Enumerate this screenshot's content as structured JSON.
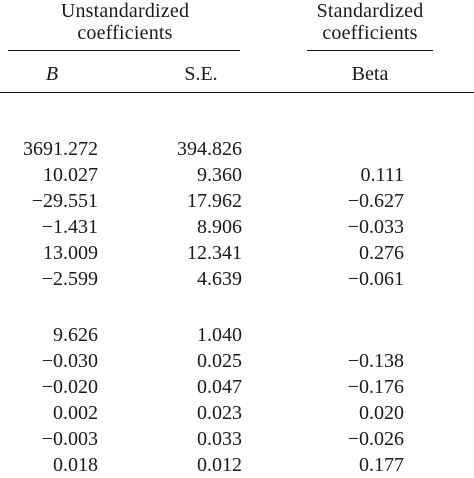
{
  "header": {
    "unstandardized_line1": "Unstandardized",
    "unstandardized_line2": "coefficients",
    "standardized_line1": "Standardized",
    "standardized_line2": "coefficients"
  },
  "columns": {
    "b": "B",
    "se": "S.E.",
    "beta": "Beta"
  },
  "group1": [
    {
      "b": "3691.272",
      "se": "394.826",
      "beta": ""
    },
    {
      "b": "10.027",
      "se": "9.360",
      "beta": "0.111"
    },
    {
      "b": "−29.551",
      "se": "17.962",
      "beta": "−0.627"
    },
    {
      "b": "−1.431",
      "se": "8.906",
      "beta": "−0.033"
    },
    {
      "b": "13.009",
      "se": "12.341",
      "beta": "0.276"
    },
    {
      "b": "−2.599",
      "se": "4.639",
      "beta": "−0.061"
    }
  ],
  "group2": [
    {
      "b": "9.626",
      "se": "1.040",
      "beta": ""
    },
    {
      "b": "−0.030",
      "se": "0.025",
      "beta": "−0.138"
    },
    {
      "b": "−0.020",
      "se": "0.047",
      "beta": "−0.176"
    },
    {
      "b": "0.002",
      "se": "0.023",
      "beta": "0.020"
    },
    {
      "b": "−0.003",
      "se": "0.033",
      "beta": "−0.026"
    },
    {
      "b": "0.018",
      "se": "0.012",
      "beta": "0.177"
    }
  ]
}
